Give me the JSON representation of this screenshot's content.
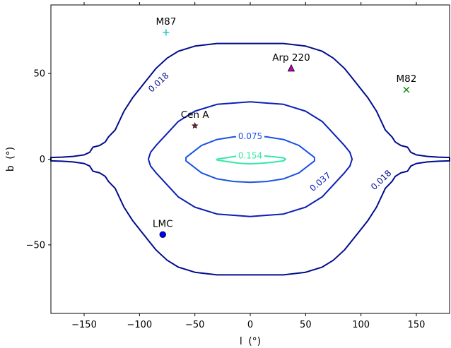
{
  "chart_data": {
    "type": "contour",
    "xlabel": "l",
    "ylabel": "b",
    "axis_unit": "(°)",
    "xlim": [
      -180,
      180
    ],
    "ylim": [
      -90,
      90
    ],
    "xticks": [
      -150,
      -100,
      -50,
      0,
      50,
      100,
      150
    ],
    "yticks": [
      -50,
      0,
      50
    ],
    "xtick_labels": [
      "−150",
      "−100",
      "−50",
      "0",
      "50",
      "100",
      "150"
    ],
    "ytick_labels": [
      "−50",
      "0",
      "50"
    ],
    "grid": false,
    "contours": [
      {
        "level_label": "0.018",
        "color": "#000c8b",
        "points": [
          [
            -180,
            1
          ],
          [
            -170,
            1.2
          ],
          [
            -160,
            1.6
          ],
          [
            -150,
            2.5
          ],
          [
            -145,
            4
          ],
          [
            -142,
            7
          ],
          [
            -136,
            8
          ],
          [
            -131,
            10
          ],
          [
            -128,
            13
          ],
          [
            -122,
            17
          ],
          [
            -114,
            28
          ],
          [
            -106,
            36
          ],
          [
            -95,
            45
          ],
          [
            -85,
            53
          ],
          [
            -75,
            59
          ],
          [
            -65,
            63
          ],
          [
            -50,
            66
          ],
          [
            -30,
            67.5
          ],
          [
            0,
            67.5
          ],
          [
            30,
            67.5
          ],
          [
            50,
            66
          ],
          [
            65,
            63
          ],
          [
            75,
            59
          ],
          [
            85,
            53
          ],
          [
            95,
            45
          ],
          [
            106,
            36
          ],
          [
            114,
            28
          ],
          [
            122,
            17
          ],
          [
            128,
            13
          ],
          [
            131,
            10
          ],
          [
            136,
            8
          ],
          [
            142,
            7
          ],
          [
            145,
            4
          ],
          [
            150,
            2.5
          ],
          [
            160,
            1.6
          ],
          [
            170,
            1.2
          ],
          [
            180,
            1
          ],
          [
            180,
            -1
          ],
          [
            170,
            -1.2
          ],
          [
            160,
            -1.6
          ],
          [
            150,
            -2.5
          ],
          [
            145,
            -4
          ],
          [
            142,
            -7
          ],
          [
            136,
            -8
          ],
          [
            131,
            -10
          ],
          [
            128,
            -13
          ],
          [
            122,
            -17
          ],
          [
            114,
            -28
          ],
          [
            106,
            -36
          ],
          [
            95,
            -45
          ],
          [
            85,
            -53
          ],
          [
            75,
            -59
          ],
          [
            65,
            -63
          ],
          [
            50,
            -66
          ],
          [
            30,
            -67.5
          ],
          [
            0,
            -67.5
          ],
          [
            -30,
            -67.5
          ],
          [
            -50,
            -66
          ],
          [
            -65,
            -63
          ],
          [
            -75,
            -59
          ],
          [
            -85,
            -53
          ],
          [
            -95,
            -45
          ],
          [
            -106,
            -36
          ],
          [
            -114,
            -28
          ],
          [
            -122,
            -17
          ],
          [
            -128,
            -13
          ],
          [
            -131,
            -10
          ],
          [
            -136,
            -8
          ],
          [
            -142,
            -7
          ],
          [
            -145,
            -4
          ],
          [
            -150,
            -2.5
          ],
          [
            -160,
            -1.6
          ],
          [
            -170,
            -1.2
          ],
          [
            -180,
            -1
          ]
        ],
        "labels": [
          {
            "x": -83,
            "y": 45,
            "text": "0.018",
            "rotate": -43
          },
          {
            "x": 118,
            "y": -12,
            "text": "0.018",
            "rotate": -44
          }
        ]
      },
      {
        "level_label": "0.037",
        "color": "#0b1fb6",
        "points": [
          [
            -92,
            0
          ],
          [
            -90,
            4
          ],
          [
            -85,
            8
          ],
          [
            -75,
            15
          ],
          [
            -65,
            22
          ],
          [
            -50,
            28
          ],
          [
            -30,
            32
          ],
          [
            0,
            33.5
          ],
          [
            30,
            32
          ],
          [
            50,
            28
          ],
          [
            65,
            22
          ],
          [
            75,
            15
          ],
          [
            85,
            8
          ],
          [
            90,
            4
          ],
          [
            92,
            0
          ],
          [
            90,
            -4
          ],
          [
            85,
            -8
          ],
          [
            75,
            -15
          ],
          [
            65,
            -22
          ],
          [
            50,
            -28
          ],
          [
            30,
            -32
          ],
          [
            0,
            -33.5
          ],
          [
            -30,
            -32
          ],
          [
            -50,
            -28
          ],
          [
            -65,
            -22
          ],
          [
            -75,
            -15
          ],
          [
            -85,
            -8
          ],
          [
            -90,
            -4
          ]
        ],
        "labels": [
          {
            "x": 63,
            "y": -13,
            "text": "0.037",
            "rotate": -40
          }
        ]
      },
      {
        "level_label": "0.075",
        "color": "#1a52e6",
        "points": [
          [
            -58,
            1
          ],
          [
            -52,
            4
          ],
          [
            -44,
            8
          ],
          [
            -30,
            11.5
          ],
          [
            -15,
            13
          ],
          [
            0,
            13.5
          ],
          [
            15,
            13
          ],
          [
            30,
            11.5
          ],
          [
            44,
            8
          ],
          [
            52,
            4
          ],
          [
            58,
            1
          ],
          [
            58,
            -1
          ],
          [
            52,
            -4
          ],
          [
            44,
            -8
          ],
          [
            30,
            -11.5
          ],
          [
            15,
            -13
          ],
          [
            0,
            -13.5
          ],
          [
            -15,
            -13
          ],
          [
            -30,
            -11.5
          ],
          [
            -44,
            -8
          ],
          [
            -52,
            -4
          ],
          [
            -58,
            -1
          ]
        ],
        "labels": [
          {
            "x": 0,
            "y": 13.5,
            "text": "0.075",
            "rotate": 0
          }
        ]
      },
      {
        "level_label": "0.154",
        "color": "#35e8a5",
        "points": [
          [
            -30,
            0
          ],
          [
            -20,
            1
          ],
          [
            -10,
            2
          ],
          [
            0,
            2.2
          ],
          [
            10,
            2
          ],
          [
            20,
            1.5
          ],
          [
            30,
            0.8
          ],
          [
            32,
            0
          ],
          [
            30,
            -1
          ],
          [
            20,
            -1.8
          ],
          [
            10,
            -2.4
          ],
          [
            0,
            -2.7
          ],
          [
            -10,
            -2.4
          ],
          [
            -20,
            -1.5
          ],
          [
            -30,
            -0.5
          ]
        ],
        "labels": [
          {
            "x": 0,
            "y": 2.3,
            "text": "0.154",
            "rotate": 0
          }
        ]
      }
    ],
    "sources": [
      {
        "name": "M87",
        "l": -76,
        "b": 74,
        "marker": "plus",
        "color": "#00bfbf"
      },
      {
        "name": "Arp 220",
        "l": 37,
        "b": 53,
        "marker": "triangle",
        "color": "#bf00bf"
      },
      {
        "name": "M82",
        "l": 141,
        "b": 40.5,
        "marker": "x",
        "color": "#008000"
      },
      {
        "name": "Cen A",
        "l": -50,
        "b": 19.5,
        "marker": "star",
        "color": "#8b1a1a"
      },
      {
        "name": "LMC",
        "l": -79,
        "b": -44,
        "marker": "circle",
        "color": "#0000ff"
      }
    ]
  }
}
